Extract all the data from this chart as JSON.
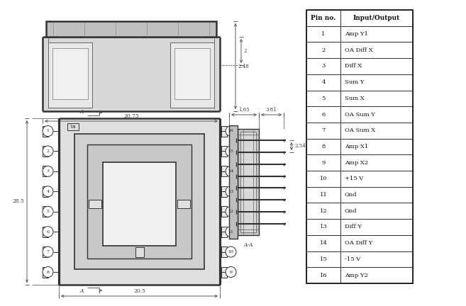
{
  "table_header": [
    "Pin no.",
    "Input/Output"
  ],
  "table_rows": [
    [
      "1",
      "Amp Y1"
    ],
    [
      "2",
      "OA Diff X"
    ],
    [
      "3",
      "Diff X"
    ],
    [
      "4",
      "Sum Y"
    ],
    [
      "5",
      "Sum X"
    ],
    [
      "6",
      "OA Sum Y"
    ],
    [
      "7",
      "OA Sum X"
    ],
    [
      "8",
      "Amp X1"
    ],
    [
      "9",
      "Amp X2"
    ],
    [
      "10",
      "+15 V"
    ],
    [
      "11",
      "Gnd"
    ],
    [
      "12",
      "Gnd"
    ],
    [
      "13",
      "Diff Y"
    ],
    [
      "14",
      "OA Diff Y"
    ],
    [
      "15",
      "-15 V"
    ],
    [
      "16",
      "Amp Y2"
    ]
  ],
  "dim_20_75": "20.75",
  "dim_20_5": "20.5",
  "dim_2_48": "2.48",
  "dim_2": "2",
  "dim_1_65": "1.65",
  "dim_3_81": "3.81",
  "dim_2_54": "2.54",
  "dim_28_5": "28.5",
  "label_A": "A",
  "label_AA": "A-A",
  "bg": "#ffffff",
  "lc": "#555555",
  "dc": "#444444",
  "thick": "#333333"
}
